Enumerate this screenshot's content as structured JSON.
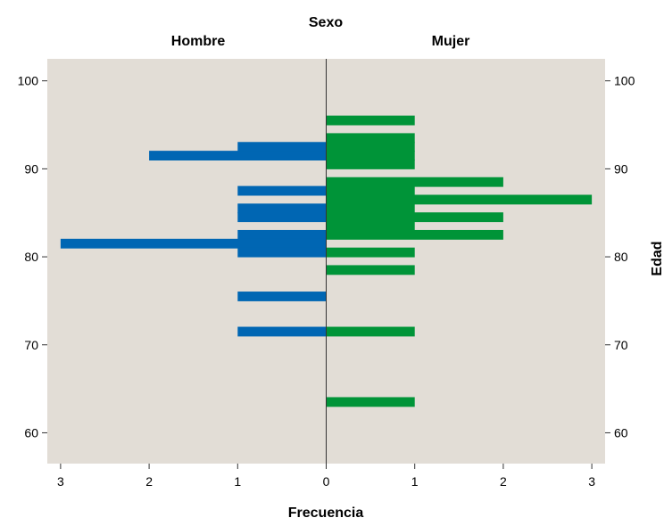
{
  "chart_data": {
    "type": "bar",
    "orientation": "horizontal",
    "title": "Sexo",
    "xlabel": "Frecuencia",
    "ylabel": "Edad",
    "ylim": [
      56.5,
      102.5
    ],
    "xlim": [
      -3.15,
      3.15
    ],
    "y_ticks": [
      60,
      70,
      80,
      90,
      100
    ],
    "x_ticks": [
      -3,
      -2,
      -1,
      0,
      1,
      2,
      3
    ],
    "x_tick_labels": [
      "3",
      "2",
      "1",
      "0",
      "1",
      "2",
      "3"
    ],
    "panel_color": "#e2ddd6",
    "series": [
      {
        "name": "Hombre",
        "side": "left",
        "color": "#0066b3",
        "bars": [
          {
            "age": 92.5,
            "count": 1
          },
          {
            "age": 91.5,
            "count": 2
          },
          {
            "age": 87.5,
            "count": 1
          },
          {
            "age": 85.5,
            "count": 1
          },
          {
            "age": 84.5,
            "count": 1
          },
          {
            "age": 82.5,
            "count": 1
          },
          {
            "age": 81.5,
            "count": 3
          },
          {
            "age": 80.5,
            "count": 1
          },
          {
            "age": 75.5,
            "count": 1
          },
          {
            "age": 71.5,
            "count": 1
          }
        ]
      },
      {
        "name": "Mujer",
        "side": "right",
        "color": "#009438",
        "bars": [
          {
            "age": 95.5,
            "count": 1
          },
          {
            "age": 93.5,
            "count": 1
          },
          {
            "age": 92.5,
            "count": 1
          },
          {
            "age": 91.5,
            "count": 1
          },
          {
            "age": 90.5,
            "count": 1
          },
          {
            "age": 88.5,
            "count": 2
          },
          {
            "age": 87.5,
            "count": 1
          },
          {
            "age": 86.5,
            "count": 3
          },
          {
            "age": 85.5,
            "count": 1
          },
          {
            "age": 84.5,
            "count": 2
          },
          {
            "age": 83.5,
            "count": 1
          },
          {
            "age": 82.5,
            "count": 2
          },
          {
            "age": 80.5,
            "count": 1
          },
          {
            "age": 78.5,
            "count": 1
          },
          {
            "age": 71.5,
            "count": 1
          },
          {
            "age": 63.5,
            "count": 1
          }
        ]
      }
    ]
  }
}
